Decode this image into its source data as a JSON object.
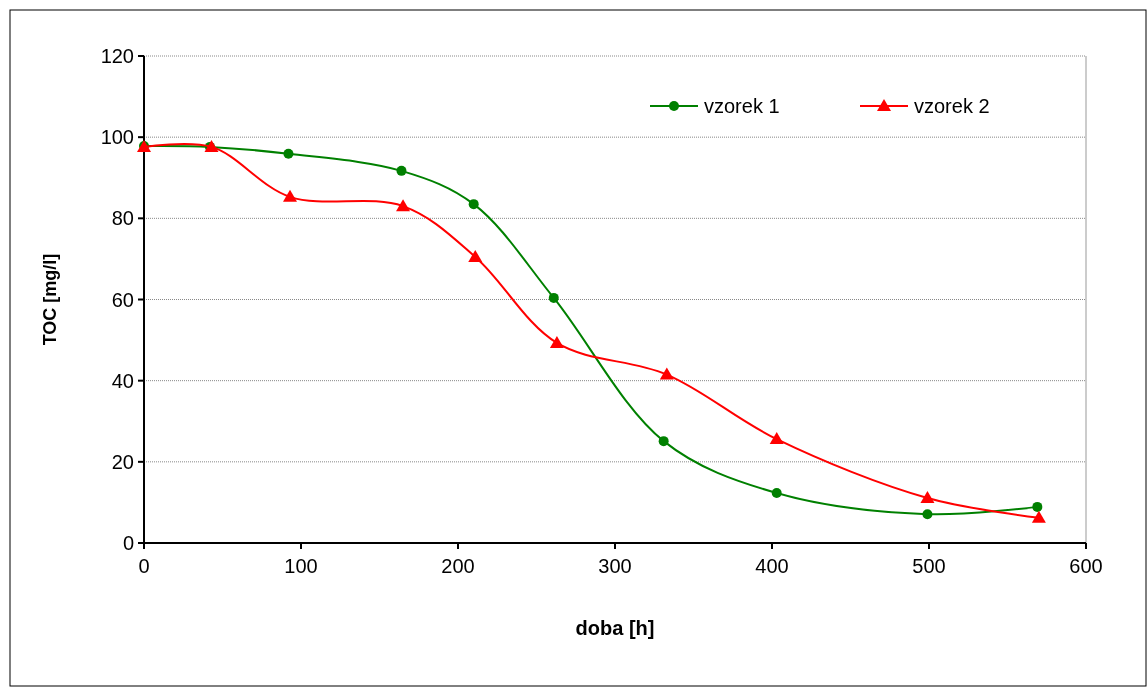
{
  "chart_data": {
    "type": "line",
    "xlabel": "doba [h]",
    "ylabel": "TOC [mg/l]",
    "xlim": [
      0,
      600
    ],
    "xticks": [
      0,
      100,
      200,
      300,
      400,
      500,
      600
    ],
    "ylim": [
      0,
      120
    ],
    "yticks": [
      0,
      20,
      40,
      60,
      80,
      100,
      120
    ],
    "grid": "y",
    "legend": "top right",
    "line_style": "solid",
    "series": [
      {
        "name": "vzorek 1",
        "color": "#008000",
        "marker": "circle",
        "x": [
          0,
          42,
          92,
          164,
          210,
          261,
          331,
          403,
          499,
          569
        ],
        "values": [
          97.8,
          97.6,
          95.9,
          91.7,
          83.5,
          60.4,
          25.1,
          12.3,
          7.1,
          8.9
        ]
      },
      {
        "name": "vzorek 2",
        "color": "#ff0000",
        "marker": "triangle",
        "x": [
          0,
          43,
          93,
          165,
          211,
          263,
          333,
          403,
          499,
          570
        ],
        "values": [
          97.6,
          97.6,
          85.3,
          83.0,
          70.5,
          49.3,
          41.5,
          25.6,
          11.1,
          6.2
        ]
      }
    ]
  }
}
